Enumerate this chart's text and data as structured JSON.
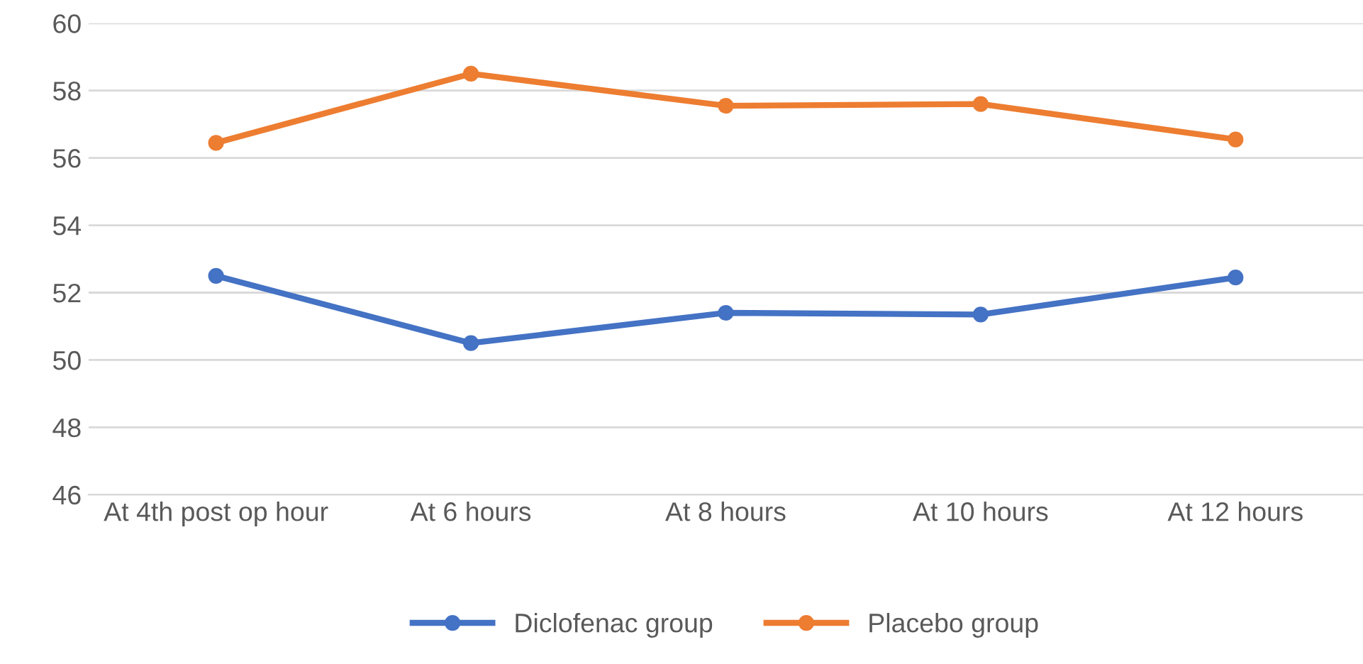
{
  "chart_data": {
    "type": "line",
    "categories": [
      "At 4th post op hour",
      "At 6 hours",
      "At 8 hours",
      "At 10 hours",
      "At 12 hours"
    ],
    "series": [
      {
        "name": "Diclofenac group",
        "color": "#4472c4",
        "values": [
          52.5,
          50.5,
          51.4,
          51.35,
          52.45
        ]
      },
      {
        "name": "Placebo group",
        "color": "#ed7d31",
        "values": [
          56.45,
          58.5,
          57.55,
          57.6,
          56.55
        ]
      }
    ],
    "ylim": [
      46,
      60
    ],
    "yticks": [
      46,
      48,
      50,
      52,
      54,
      56,
      58,
      60
    ],
    "grid": "y",
    "legend": "bottom",
    "marker": "circle",
    "line_style": "solid"
  }
}
